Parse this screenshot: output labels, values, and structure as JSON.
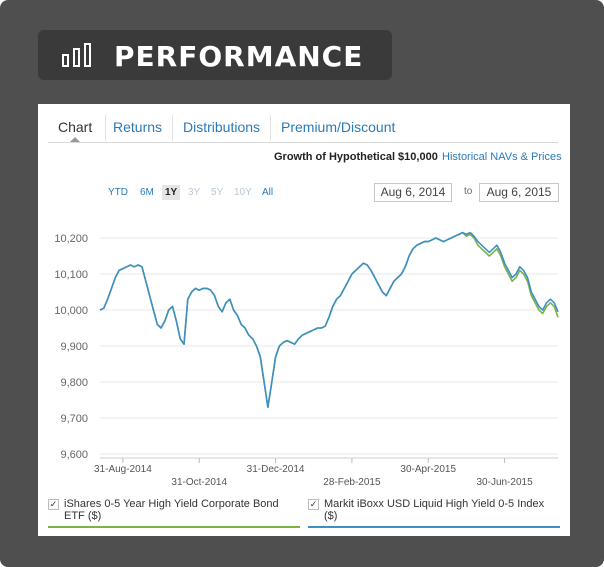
{
  "header": {
    "title": "PERFORMANCE",
    "icon": "bar-chart-icon"
  },
  "tabs": [
    {
      "label": "Chart",
      "active": true
    },
    {
      "label": "Returns"
    },
    {
      "label": "Distributions"
    },
    {
      "label": "Premium/Discount"
    }
  ],
  "subheader": {
    "title": "Growth of Hypothetical $10,000",
    "link": "Historical NAVs & Prices"
  },
  "ranges": [
    {
      "label": "YTD",
      "state": "enabled"
    },
    {
      "label": "6M",
      "state": "enabled"
    },
    {
      "label": "1Y",
      "state": "selected"
    },
    {
      "label": "3Y",
      "state": "disabled"
    },
    {
      "label": "5Y",
      "state": "disabled"
    },
    {
      "label": "10Y",
      "state": "disabled"
    },
    {
      "label": "All",
      "state": "enabled"
    }
  ],
  "date_range": {
    "from": "Aug 6, 2014",
    "to_label": "to",
    "to": "Aug 6, 2015"
  },
  "legend": [
    {
      "label": "iShares 0-5 Year High Yield Corporate Bond ETF ($)",
      "color": "#7cb342",
      "checked": true
    },
    {
      "label": "Markit iBoxx USD Liquid High Yield 0-5 Index ($)",
      "color": "#3d8fc6",
      "checked": true
    }
  ],
  "chart_data": {
    "type": "line",
    "yticks": [
      "10,200",
      "10,100",
      "10,000",
      "9,900",
      "9,800",
      "9,700",
      "9,600"
    ],
    "xticks": [
      "31-Aug-2014",
      "31-Oct-2014",
      "31-Dec-2014",
      "28-Feb-2015",
      "30-Apr-2015",
      "30-Jun-2015"
    ],
    "ylim": [
      9600,
      10200
    ],
    "series": [
      {
        "name": "iShares 0-5 Year High Yield Corporate Bond ETF ($)",
        "color": "#7cb342",
        "values": [
          10000,
          10005,
          10030,
          10060,
          10090,
          10110,
          10115,
          10120,
          10125,
          10120,
          10125,
          10120,
          10080,
          10040,
          10000,
          9960,
          9950,
          9970,
          10000,
          10010,
          9970,
          9920,
          9905,
          10030,
          10050,
          10060,
          10055,
          10060,
          10060,
          10055,
          10040,
          10010,
          9995,
          10020,
          10030,
          10000,
          9985,
          9960,
          9950,
          9930,
          9920,
          9900,
          9870,
          9800,
          9730,
          9800,
          9870,
          9900,
          9910,
          9915,
          9910,
          9905,
          9920,
          9930,
          9935,
          9940,
          9945,
          9950,
          9950,
          9955,
          9980,
          10010,
          10030,
          10040,
          10060,
          10080,
          10100,
          10110,
          10120,
          10130,
          10125,
          10110,
          10090,
          10070,
          10050,
          10040,
          10060,
          10080,
          10090,
          10100,
          10120,
          10150,
          10170,
          10180,
          10185,
          10190,
          10190,
          10195,
          10200,
          10195,
          10190,
          10195,
          10200,
          10205,
          10210,
          10215,
          10205,
          10210,
          10200,
          10180,
          10170,
          10160,
          10150,
          10160,
          10170,
          10150,
          10120,
          10100,
          10080,
          10090,
          10110,
          10100,
          10080,
          10040,
          10020,
          10000,
          9990,
          10010,
          10020,
          10010,
          9980
        ]
      },
      {
        "name": "Markit iBoxx USD Liquid High Yield 0-5 Index ($)",
        "color": "#3d8fc6",
        "values": [
          10000,
          10005,
          10030,
          10060,
          10090,
          10110,
          10115,
          10120,
          10125,
          10120,
          10125,
          10120,
          10080,
          10040,
          10000,
          9960,
          9950,
          9970,
          10000,
          10010,
          9970,
          9920,
          9905,
          10030,
          10050,
          10060,
          10055,
          10060,
          10060,
          10055,
          10040,
          10010,
          9995,
          10020,
          10030,
          10000,
          9985,
          9960,
          9950,
          9930,
          9920,
          9900,
          9870,
          9800,
          9730,
          9800,
          9870,
          9900,
          9910,
          9915,
          9910,
          9905,
          9920,
          9930,
          9935,
          9940,
          9945,
          9950,
          9950,
          9955,
          9980,
          10010,
          10030,
          10040,
          10060,
          10080,
          10100,
          10110,
          10120,
          10130,
          10125,
          10110,
          10090,
          10070,
          10050,
          10040,
          10060,
          10080,
          10090,
          10100,
          10120,
          10150,
          10170,
          10180,
          10185,
          10190,
          10190,
          10195,
          10200,
          10195,
          10190,
          10195,
          10200,
          10205,
          10210,
          10215,
          10210,
          10215,
          10205,
          10190,
          10180,
          10170,
          10160,
          10170,
          10180,
          10160,
          10130,
          10110,
          10090,
          10100,
          10120,
          10110,
          10090,
          10050,
          10030,
          10010,
          10000,
          10020,
          10030,
          10020,
          9995
        ]
      }
    ]
  }
}
